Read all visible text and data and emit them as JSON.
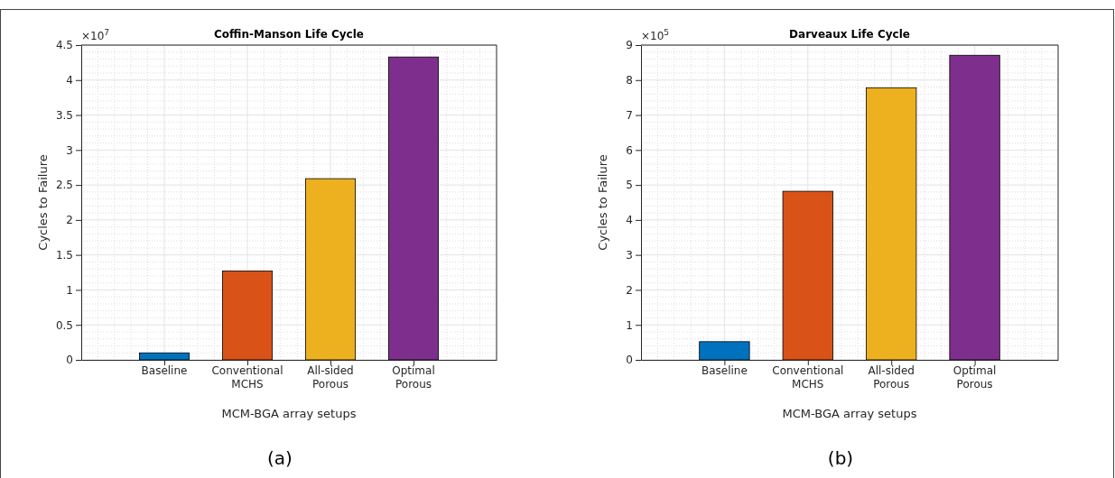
{
  "chart_data": [
    {
      "type": "bar",
      "title": "Coffin-Manson Life Cycle",
      "xlabel": "MCM-BGA array setups",
      "ylabel": "Cycles to Failure",
      "categories": [
        "Baseline",
        "Conventional MCHS",
        "All-sided Porous",
        "Optimal Porous"
      ],
      "values": [
        0.1,
        1.27,
        2.59,
        4.33
      ],
      "colors": [
        "#0072bd",
        "#d95319",
        "#edb120",
        "#7e2f8e"
      ],
      "ylim": [
        0,
        4.5
      ],
      "yticks": [
        0,
        0.5,
        1,
        1.5,
        2,
        2.5,
        3,
        3.5,
        4,
        4.5
      ],
      "grid": true,
      "annotations": [
        "×10$^{7}$",
        "(a)"
      ]
    },
    {
      "type": "bar",
      "title": "Darveaux Life Cycle",
      "xlabel": "MCM-BGA array setups",
      "ylabel": "Cycles to Failure",
      "categories": [
        "Baseline",
        "Conventional MCHS",
        "All-sided Porous",
        "Optimal Porous"
      ],
      "values": [
        0.52,
        4.82,
        7.78,
        8.71
      ],
      "colors": [
        "#0072bd",
        "#d95319",
        "#edb120",
        "#7e2f8e"
      ],
      "ylim": [
        0,
        9
      ],
      "yticks": [
        0,
        1,
        2,
        3,
        4,
        5,
        6,
        7,
        8,
        9
      ],
      "grid": true,
      "annotations": [
        "×10$^{5}$",
        "(b)"
      ]
    }
  ]
}
